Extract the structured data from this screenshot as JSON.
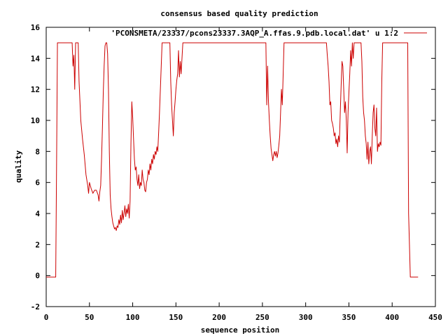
{
  "chart_data": {
    "type": "line",
    "title": "consensus based quality prediction",
    "xlabel": "sequence position",
    "ylabel": "quality",
    "xlim": [
      0,
      450
    ],
    "ylim": [
      -2,
      16
    ],
    "x_ticks": [
      "0",
      "50",
      "100",
      "150",
      "200",
      "250",
      "300",
      "350",
      "400",
      "450"
    ],
    "y_ticks": [
      "-2",
      "0",
      "2",
      "4",
      "6",
      "8",
      "10",
      "12",
      "14",
      "16"
    ],
    "grid": false,
    "legend_position": "top-right",
    "series": [
      {
        "name": "'PCONSMETA/23337/pcons23337.3AQP_A.ffas.9.pdb.local.dat' u 1:2",
        "color": "#cc0000",
        "points": [
          [
            0,
            -0.1
          ],
          [
            11,
            -0.1
          ],
          [
            12,
            7.2
          ],
          [
            13,
            15
          ],
          [
            30,
            15
          ],
          [
            31,
            13.5
          ],
          [
            32,
            14.2
          ],
          [
            33,
            12
          ],
          [
            34,
            15
          ],
          [
            37,
            15
          ],
          [
            38,
            12.5
          ],
          [
            40,
            10
          ],
          [
            42,
            8.8
          ],
          [
            44,
            7.8
          ],
          [
            46,
            6.5
          ],
          [
            48,
            5.8
          ],
          [
            49,
            5.3
          ],
          [
            50,
            6.0
          ],
          [
            52,
            5.6
          ],
          [
            54,
            5.3
          ],
          [
            56,
            5.5
          ],
          [
            58,
            5.5
          ],
          [
            60,
            5.2
          ],
          [
            61,
            4.8
          ],
          [
            62,
            5.4
          ],
          [
            63,
            5.8
          ],
          [
            64,
            7.5
          ],
          [
            65,
            9.5
          ],
          [
            66,
            11.8
          ],
          [
            67,
            13.5
          ],
          [
            68,
            14.8
          ],
          [
            69,
            15
          ],
          [
            70,
            15
          ],
          [
            71,
            14.3
          ],
          [
            72,
            12
          ],
          [
            73,
            8
          ],
          [
            74,
            5.2
          ],
          [
            75,
            4.3
          ],
          [
            76,
            3.8
          ],
          [
            77,
            3.4
          ],
          [
            78,
            3.2
          ],
          [
            79,
            3.0
          ],
          [
            80,
            3.1
          ],
          [
            81,
            2.9
          ],
          [
            82,
            3.2
          ],
          [
            83,
            3.1
          ],
          [
            84,
            3.6
          ],
          [
            85,
            3.3
          ],
          [
            86,
            3.9
          ],
          [
            87,
            3.4
          ],
          [
            88,
            4.2
          ],
          [
            89,
            3.6
          ],
          [
            90,
            4.0
          ],
          [
            91,
            4.5
          ],
          [
            92,
            3.8
          ],
          [
            93,
            4.3
          ],
          [
            94,
            4.0
          ],
          [
            95,
            4.6
          ],
          [
            96,
            3.7
          ],
          [
            97,
            4.8
          ],
          [
            98,
            8.5
          ],
          [
            99,
            11.2
          ],
          [
            100,
            10.2
          ],
          [
            101,
            8.8
          ],
          [
            102,
            7.5
          ],
          [
            103,
            6.8
          ],
          [
            104,
            7.0
          ],
          [
            105,
            6.2
          ],
          [
            106,
            5.8
          ],
          [
            107,
            6.5
          ],
          [
            108,
            5.6
          ],
          [
            109,
            6.0
          ],
          [
            110,
            5.8
          ],
          [
            111,
            6.8
          ],
          [
            112,
            6.2
          ],
          [
            113,
            6.0
          ],
          [
            114,
            5.5
          ],
          [
            115,
            5.4
          ],
          [
            116,
            6.0
          ],
          [
            117,
            6.2
          ],
          [
            118,
            6.8
          ],
          [
            119,
            6.5
          ],
          [
            120,
            7.2
          ],
          [
            121,
            6.8
          ],
          [
            122,
            7.5
          ],
          [
            123,
            7.2
          ],
          [
            124,
            7.8
          ],
          [
            125,
            7.5
          ],
          [
            126,
            8.0
          ],
          [
            127,
            7.8
          ],
          [
            128,
            8.3
          ],
          [
            129,
            8.0
          ],
          [
            130,
            9.2
          ],
          [
            131,
            10.5
          ],
          [
            132,
            12.0
          ],
          [
            133,
            13.5
          ],
          [
            134,
            15
          ],
          [
            143,
            15
          ],
          [
            144,
            12.5
          ],
          [
            145,
            11
          ],
          [
            146,
            10
          ],
          [
            147,
            9.0
          ],
          [
            148,
            10.5
          ],
          [
            149,
            11.2
          ],
          [
            150,
            12.0
          ],
          [
            151,
            12.6
          ],
          [
            152,
            13.0
          ],
          [
            153,
            14.5
          ],
          [
            154,
            12.8
          ],
          [
            155,
            13.8
          ],
          [
            156,
            13.0
          ],
          [
            157,
            14.0
          ],
          [
            158,
            15
          ],
          [
            254,
            15
          ],
          [
            255,
            11.0
          ],
          [
            256,
            13.5
          ],
          [
            257,
            11.2
          ],
          [
            258,
            10.0
          ],
          [
            259,
            9.0
          ],
          [
            260,
            8.2
          ],
          [
            261,
            7.8
          ],
          [
            262,
            7.4
          ],
          [
            263,
            7.8
          ],
          [
            264,
            8.0
          ],
          [
            265,
            7.7
          ],
          [
            266,
            8.0
          ],
          [
            267,
            7.6
          ],
          [
            268,
            7.9
          ],
          [
            269,
            8.4
          ],
          [
            270,
            9.0
          ],
          [
            271,
            10.5
          ],
          [
            272,
            12.0
          ],
          [
            273,
            11.0
          ],
          [
            274,
            13.0
          ],
          [
            275,
            15
          ],
          [
            324,
            15
          ],
          [
            325,
            14.2
          ],
          [
            326,
            13.5
          ],
          [
            327,
            12.5
          ],
          [
            328,
            11.0
          ],
          [
            329,
            11.2
          ],
          [
            330,
            10.0
          ],
          [
            331,
            9.8
          ],
          [
            332,
            9.5
          ],
          [
            333,
            9.0
          ],
          [
            334,
            9.2
          ],
          [
            335,
            8.5
          ],
          [
            336,
            8.8
          ],
          [
            337,
            8.3
          ],
          [
            338,
            9.0
          ],
          [
            339,
            8.6
          ],
          [
            340,
            10.5
          ],
          [
            341,
            12.2
          ],
          [
            342,
            13.8
          ],
          [
            343,
            13.5
          ],
          [
            344,
            12.0
          ],
          [
            345,
            10.5
          ],
          [
            346,
            11.2
          ],
          [
            347,
            10.0
          ],
          [
            348,
            7.9
          ],
          [
            349,
            10.5
          ],
          [
            350,
            11.8
          ],
          [
            351,
            13.0
          ],
          [
            352,
            14.5
          ],
          [
            353,
            13.5
          ],
          [
            354,
            15
          ],
          [
            355,
            14.0
          ],
          [
            356,
            15
          ],
          [
            364,
            15
          ],
          [
            365,
            13.8
          ],
          [
            366,
            11.5
          ],
          [
            367,
            10.5
          ],
          [
            368,
            10.0
          ],
          [
            369,
            9.0
          ],
          [
            370,
            8.5
          ],
          [
            371,
            7.5
          ],
          [
            372,
            8.6
          ],
          [
            373,
            7.2
          ],
          [
            374,
            8.0
          ],
          [
            375,
            8.3
          ],
          [
            376,
            7.2
          ],
          [
            377,
            9.0
          ],
          [
            378,
            10.5
          ],
          [
            379,
            11.0
          ],
          [
            380,
            9.5
          ],
          [
            381,
            9.0
          ],
          [
            382,
            10.8
          ],
          [
            383,
            8.0
          ],
          [
            384,
            8.5
          ],
          [
            385,
            8.3
          ],
          [
            386,
            8.6
          ],
          [
            387,
            8.4
          ],
          [
            388,
            12.5
          ],
          [
            389,
            15
          ],
          [
            418,
            15
          ],
          [
            419,
            4.0
          ],
          [
            420,
            2.0
          ],
          [
            421,
            -0.1
          ],
          [
            430,
            -0.1
          ]
        ]
      }
    ]
  }
}
